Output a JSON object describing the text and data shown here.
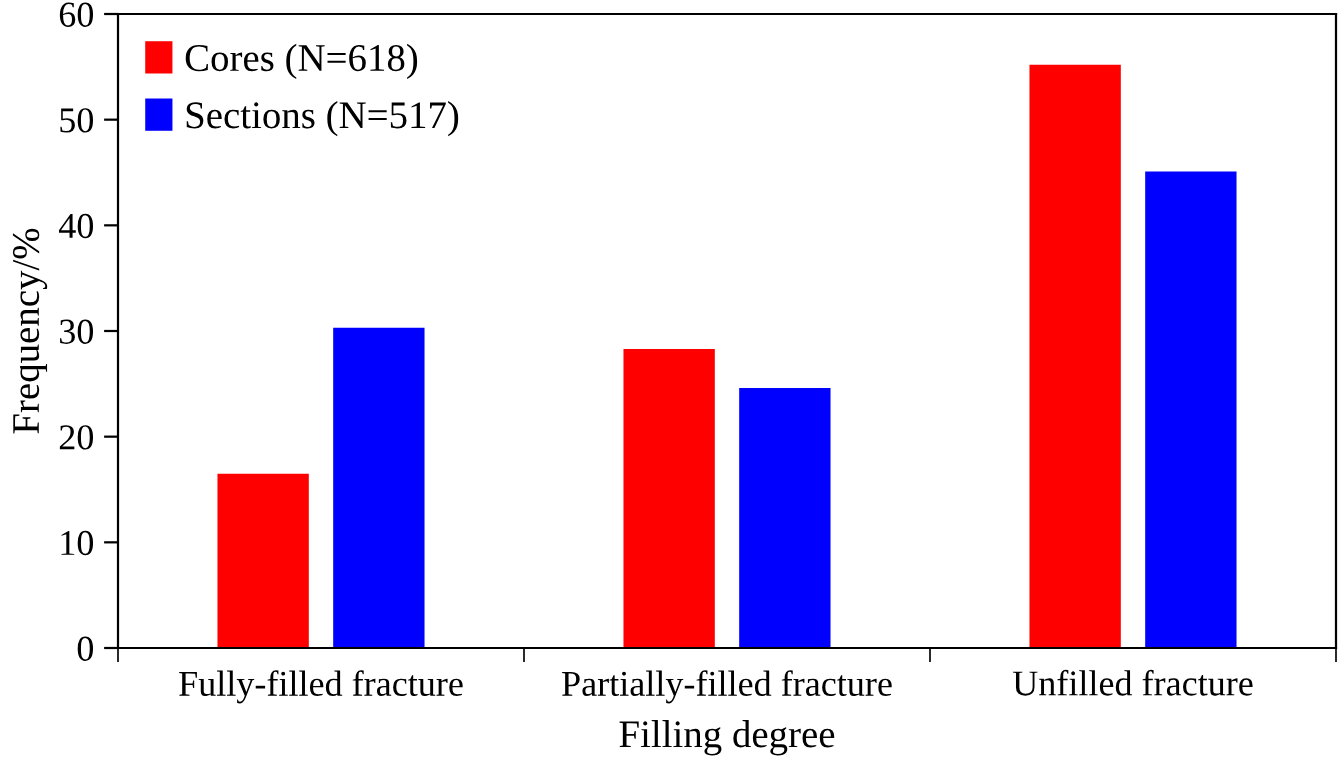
{
  "chart_data": {
    "type": "bar",
    "xlabel": "Filling degree",
    "ylabel": "Frequency/%",
    "categories": [
      "Fully-filled fracture",
      "Partially-filled fracture",
      "Unfilled fracture"
    ],
    "series": [
      {
        "name": "Cores (N=618)",
        "color": "#ff0000",
        "values": [
          16.5,
          28.3,
          55.2
        ]
      },
      {
        "name": "Sections (N=517)",
        "color": "#0000ff",
        "values": [
          30.3,
          24.6,
          45.1
        ]
      }
    ],
    "ylim": [
      0,
      60
    ],
    "yticks": [
      0,
      10,
      20,
      30,
      40,
      50,
      60
    ],
    "grid": false,
    "legend": "top left"
  }
}
